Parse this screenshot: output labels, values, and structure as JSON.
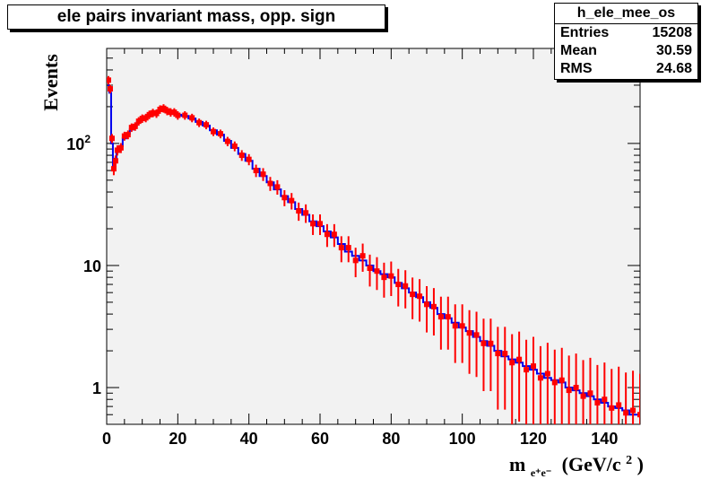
{
  "chart_data": {
    "type": "scatter",
    "title": "ele pairs invariant mass, opp. sign",
    "xlabel_main": "m",
    "xlabel_sub": "e⁺e⁻",
    "xlabel_unit": "(GeV/c",
    "xlabel_sup": "2",
    "xlabel_close": ")",
    "ylabel": "Events",
    "xlim": [
      0,
      150
    ],
    "ylim": [
      0.5,
      600
    ],
    "y_scale": "log",
    "x_ticks": [
      "0",
      "20",
      "40",
      "60",
      "80",
      "100",
      "120",
      "140"
    ],
    "y_ticks": [
      {
        "value": 1,
        "label": "1"
      },
      {
        "value": 10,
        "label": "10"
      },
      {
        "value": 100,
        "label": "10",
        "sup": "2"
      }
    ],
    "series": [
      {
        "color": "#0000ee",
        "kind": "histogram",
        "x": [
          0.5,
          1.0,
          1.5,
          2.0,
          2.5,
          3,
          4,
          5,
          6,
          7,
          8,
          9,
          10,
          11,
          12,
          13,
          14,
          15,
          16,
          17,
          18,
          19,
          20,
          22,
          24,
          26,
          28,
          30,
          32,
          34,
          36,
          38,
          40,
          42,
          44,
          46,
          48,
          50,
          52,
          54,
          56,
          58,
          60,
          62,
          64,
          66,
          68,
          70,
          72,
          74,
          76,
          78,
          80,
          82,
          84,
          86,
          88,
          90,
          92,
          94,
          96,
          98,
          100,
          102,
          104,
          106,
          108,
          110,
          112,
          114,
          116,
          118,
          120,
          122,
          124,
          126,
          128,
          130,
          132,
          134,
          136,
          138,
          140,
          142,
          144,
          146,
          148,
          150
        ],
        "y": [
          300,
          260,
          100,
          65,
          75,
          85,
          95,
          110,
          120,
          130,
          140,
          150,
          158,
          165,
          170,
          175,
          180,
          185,
          190,
          188,
          182,
          178,
          172,
          168,
          160,
          150,
          140,
          128,
          118,
          105,
          92,
          82,
          72,
          62,
          54,
          48,
          42,
          37,
          33,
          29,
          26,
          23,
          21,
          19,
          17,
          15,
          13,
          12,
          11,
          10,
          9,
          8.5,
          8,
          7.2,
          6.5,
          6,
          5.5,
          5,
          4.5,
          4,
          3.7,
          3.4,
          3.1,
          2.9,
          2.6,
          2.4,
          2.2,
          2.0,
          1.8,
          1.7,
          1.6,
          1.5,
          1.4,
          1.3,
          1.2,
          1.15,
          1.1,
          1.0,
          0.95,
          0.9,
          0.85,
          0.8,
          0.75,
          0.7,
          0.68,
          0.65,
          0.6,
          0.6
        ]
      },
      {
        "color": "#ff0000",
        "kind": "errorbars",
        "x": [
          0.5,
          1.0,
          1.5,
          2.0,
          2.5,
          3,
          4,
          5,
          6,
          7,
          8,
          9,
          10,
          11,
          12,
          13,
          14,
          15,
          16,
          17,
          18,
          19,
          20,
          22,
          24,
          26,
          28,
          30,
          32,
          34,
          36,
          38,
          40,
          42,
          44,
          46,
          48,
          50,
          52,
          54,
          56,
          58,
          60,
          62,
          64,
          66,
          68,
          70,
          72,
          74,
          76,
          78,
          80,
          82,
          84,
          86,
          88,
          90,
          92,
          94,
          96,
          98,
          100,
          102,
          104,
          106,
          108,
          110,
          112,
          114,
          116,
          118,
          120,
          122,
          124,
          126,
          128,
          130,
          132,
          134,
          136,
          138,
          140,
          142,
          144,
          146,
          148,
          150
        ],
        "y": [
          330,
          280,
          110,
          62,
          72,
          88,
          92,
          115,
          118,
          135,
          138,
          152,
          160,
          162,
          172,
          178,
          176,
          190,
          194,
          185,
          180,
          180,
          170,
          170,
          162,
          148,
          142,
          125,
          120,
          104,
          95,
          80,
          74,
          60,
          56,
          47,
          44,
          36,
          34,
          28,
          27,
          22,
          22,
          18,
          18,
          14,
          14,
          11,
          12,
          9.5,
          9,
          8,
          8.2,
          7,
          6.8,
          5.8,
          5.6,
          4.8,
          4.6,
          3.8,
          3.8,
          3.2,
          3.2,
          2.8,
          2.7,
          2.3,
          2.3,
          1.9,
          1.9,
          1.6,
          1.7,
          1.4,
          1.5,
          1.2,
          1.3,
          1.1,
          1.15,
          0.95,
          1.0,
          0.85,
          0.9,
          0.75,
          0.8,
          0.68,
          0.72,
          0.62,
          0.65,
          0.6
        ]
      }
    ],
    "stats": {
      "name": "h_ele_mee_os",
      "rows": [
        {
          "label": "Entries",
          "value": "15208"
        },
        {
          "label": "Mean",
          "value": "30.59"
        },
        {
          "label": "RMS",
          "value": "24.68"
        }
      ]
    }
  }
}
